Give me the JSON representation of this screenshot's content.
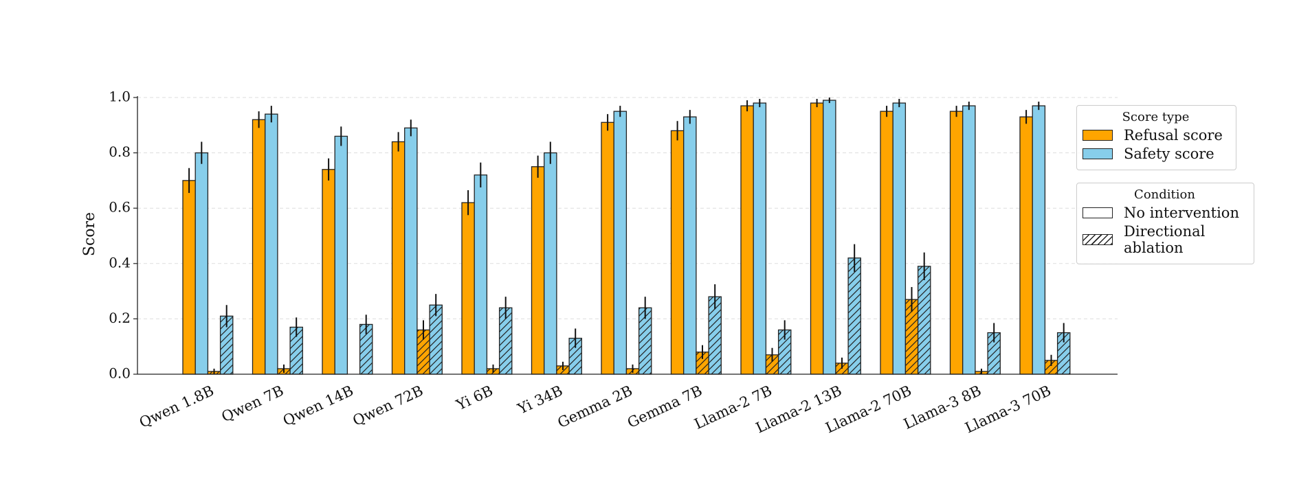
{
  "chart_data": {
    "type": "grouped_bar",
    "y_label": "Score",
    "categories": [
      "Qwen 1.8B",
      "Qwen 7B",
      "Qwen 14B",
      "Qwen 72B",
      "Yi 6B",
      "Yi 34B",
      "Gemma 2B",
      "Gemma 7B",
      "Llama-2 7B",
      "Llama-2 13B",
      "Llama-2 70B",
      "Llama-3 8B",
      "Llama-3 70B"
    ],
    "series": [
      {
        "name": "Refusal score",
        "color": "#ffa500",
        "values": [
          0.7,
          0.92,
          0.74,
          0.84,
          0.62,
          0.75,
          0.91,
          0.88,
          0.97,
          0.98,
          0.95,
          0.95,
          0.93
        ],
        "errors": [
          0.045,
          0.03,
          0.04,
          0.035,
          0.045,
          0.04,
          0.03,
          0.035,
          0.02,
          0.015,
          0.02,
          0.02,
          0.025
        ],
        "ablation_values": [
          0.01,
          0.02,
          0.0,
          0.16,
          0.02,
          0.03,
          0.02,
          0.08,
          0.07,
          0.04,
          0.27,
          0.01,
          0.05
        ],
        "ablation_errors": [
          0.01,
          0.015,
          0.0,
          0.035,
          0.015,
          0.015,
          0.015,
          0.025,
          0.025,
          0.02,
          0.045,
          0.01,
          0.02
        ]
      },
      {
        "name": "Safety score",
        "color": "#87ceeb",
        "values": [
          0.8,
          0.94,
          0.86,
          0.89,
          0.72,
          0.8,
          0.95,
          0.93,
          0.98,
          0.99,
          0.98,
          0.97,
          0.97
        ],
        "errors": [
          0.04,
          0.03,
          0.035,
          0.03,
          0.045,
          0.04,
          0.02,
          0.025,
          0.015,
          0.01,
          0.015,
          0.015,
          0.015
        ],
        "ablation_values": [
          0.21,
          0.17,
          0.18,
          0.25,
          0.24,
          0.13,
          0.24,
          0.28,
          0.16,
          0.42,
          0.39,
          0.15,
          0.15
        ],
        "ablation_errors": [
          0.04,
          0.035,
          0.035,
          0.04,
          0.04,
          0.035,
          0.04,
          0.045,
          0.035,
          0.05,
          0.05,
          0.035,
          0.035
        ]
      }
    ],
    "legend": {
      "score_title": "Score type",
      "condition_title": "Condition",
      "conditions": [
        "No intervention",
        "Directional ablation"
      ]
    },
    "ylim": [
      0.0,
      1.0
    ],
    "yticks": [
      {
        "value": 0,
        "label": "0.0"
      },
      0.2,
      0.4,
      0.6,
      0.8,
      {
        "value": 1,
        "label": "1.0"
      }
    ],
    "grid": true
  }
}
